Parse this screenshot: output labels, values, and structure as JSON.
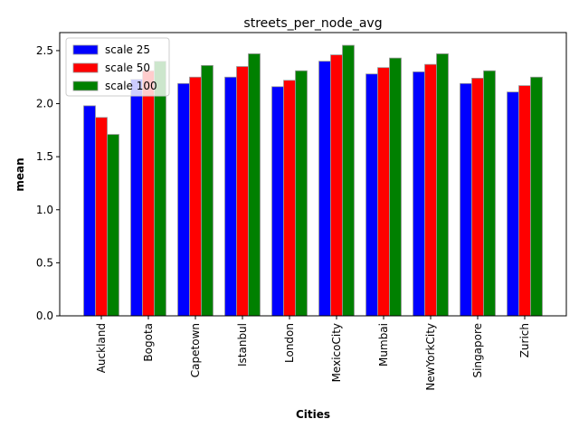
{
  "chart_data": {
    "type": "bar",
    "title": "streets_per_node_avg",
    "xlabel": "Cities",
    "ylabel": "mean",
    "categories": [
      "Auckland",
      "Bogota",
      "Capetown",
      "Istanbul",
      "London",
      "MexicoCity",
      "Mumbai",
      "NewYorkCity",
      "Singapore",
      "Zurich"
    ],
    "series": [
      {
        "name": "scale 25",
        "color": "#0000ff",
        "values": [
          1.98,
          2.23,
          2.19,
          2.25,
          2.16,
          2.4,
          2.28,
          2.3,
          2.19,
          2.11
        ]
      },
      {
        "name": "scale 50",
        "color": "#ff0000",
        "values": [
          1.87,
          2.31,
          2.25,
          2.35,
          2.22,
          2.46,
          2.34,
          2.37,
          2.24,
          2.17
        ]
      },
      {
        "name": "scale 100",
        "color": "#008000",
        "values": [
          1.71,
          2.4,
          2.36,
          2.47,
          2.31,
          2.55,
          2.43,
          2.47,
          2.31,
          2.25
        ]
      }
    ],
    "ylim": [
      0,
      2.67
    ],
    "yticks": [
      "0.0",
      "0.5",
      "1.0",
      "1.5",
      "2.0",
      "2.5"
    ],
    "grid": false,
    "legend_position": "top-left"
  }
}
